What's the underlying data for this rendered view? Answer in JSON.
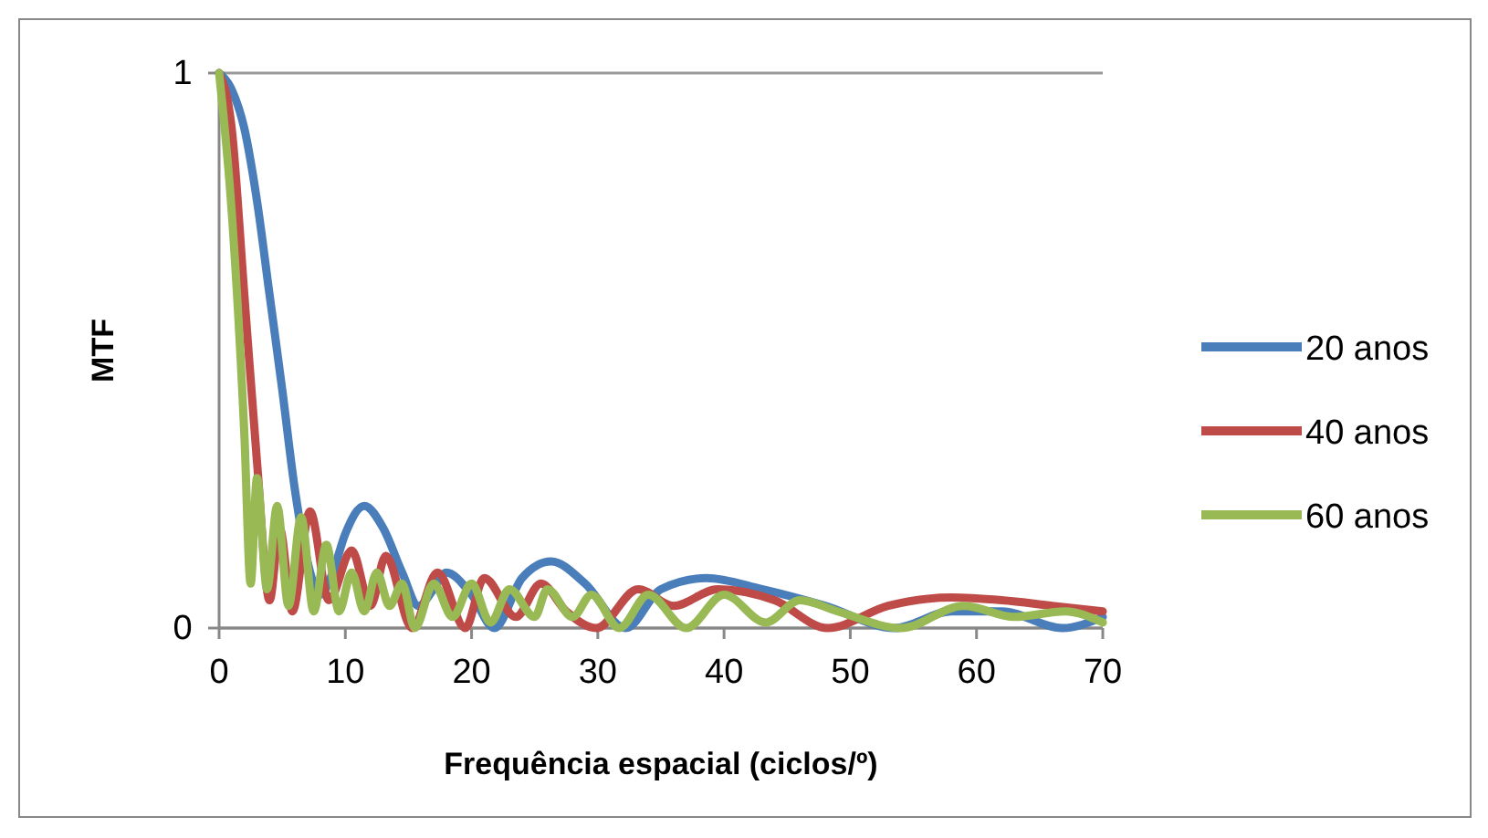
{
  "chart_data": {
    "type": "line",
    "xlabel": "Frequência espacial (ciclos/º)",
    "ylabel": "MTF",
    "xlim": [
      0,
      70
    ],
    "xticks": [
      0,
      10,
      20,
      30,
      40,
      50,
      60,
      70
    ],
    "ylim": [
      0,
      1
    ],
    "yticks": [
      0,
      1
    ],
    "grid": "y",
    "legend": "right",
    "marker": "none",
    "line_style": "solid",
    "series": [
      {
        "name": "20 anos",
        "color": "#4a7ebb",
        "x": [
          0,
          1,
          2,
          3,
          4,
          5,
          6,
          7,
          8,
          9,
          10,
          11.5,
          13,
          14.5,
          15.8,
          17,
          18,
          20,
          21.8,
          24,
          26.3,
          29,
          32.2,
          35,
          38.6,
          43,
          48,
          53.5,
          58,
          62,
          66.8,
          70
        ],
        "values": [
          1,
          0.97,
          0.9,
          0.77,
          0.6,
          0.43,
          0.25,
          0.12,
          0.06,
          0.1,
          0.17,
          0.22,
          0.18,
          0.1,
          0.04,
          0.07,
          0.1,
          0.06,
          0,
          0.09,
          0.12,
          0.08,
          0,
          0.07,
          0.09,
          0.07,
          0.04,
          0,
          0.03,
          0.03,
          0,
          0.02
        ]
      },
      {
        "name": "40 anos",
        "color": "#be4b48",
        "x": [
          0,
          1,
          2,
          3,
          4,
          4.8,
          5.8,
          7.2,
          8.7,
          10.5,
          12,
          13.2,
          15.3,
          17.3,
          19.5,
          21,
          23.5,
          25.5,
          27.5,
          29.9,
          33.2,
          36,
          39.5,
          44,
          48.2,
          53,
          58,
          62,
          66,
          70
        ],
        "values": [
          1,
          0.9,
          0.6,
          0.3,
          0.05,
          0.18,
          0.03,
          0.21,
          0.05,
          0.14,
          0.04,
          0.13,
          0,
          0.1,
          0,
          0.09,
          0.02,
          0.08,
          0.03,
          0,
          0.07,
          0.04,
          0.07,
          0.05,
          0,
          0.04,
          0.055,
          0.05,
          0.04,
          0.03
        ]
      },
      {
        "name": "60 anos",
        "color": "#98b954",
        "x": [
          0,
          1,
          2,
          2.5,
          3,
          3.8,
          4.6,
          5.5,
          6.5,
          7.5,
          8.5,
          9.5,
          10.5,
          11.5,
          12.5,
          13.5,
          14.5,
          15.5,
          17,
          18.5,
          20,
          21.5,
          23,
          25,
          26,
          28,
          29.5,
          31.7,
          34,
          37,
          40,
          43.3,
          46,
          49,
          54,
          59,
          63,
          67,
          70
        ],
        "values": [
          1,
          0.75,
          0.35,
          0.08,
          0.27,
          0.07,
          0.22,
          0.04,
          0.2,
          0.03,
          0.15,
          0.03,
          0.1,
          0.03,
          0.1,
          0.04,
          0.08,
          0,
          0.08,
          0.02,
          0.08,
          0.01,
          0.07,
          0.02,
          0.07,
          0.02,
          0.06,
          0,
          0.06,
          0,
          0.06,
          0.01,
          0.05,
          0.03,
          0,
          0.04,
          0.02,
          0.03,
          0.01
        ]
      }
    ]
  }
}
